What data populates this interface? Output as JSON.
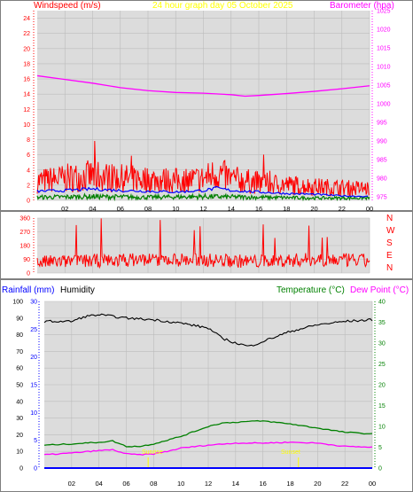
{
  "colors": {
    "wind": "#ff0000",
    "wind_avg": "#0000ff",
    "wind_lull": "#008000",
    "barometer": "#ff00ff",
    "title": "#ffff00",
    "rain": "#0000ff",
    "humidity": "#000000",
    "temperature": "#008000",
    "dewpoint": "#ff00ff",
    "panel_bg": "#dcdcdc",
    "grid": "#bcbcbc"
  },
  "header": {
    "windspeed_label": "Windspeed (m/s)",
    "title": "24 hour graph day   05 October 2025",
    "barometer_label": "Barometer (hpa)"
  },
  "bottom_header": {
    "rainfall_label": "Rainfall (mm)",
    "humidity_label": "Humidity",
    "temperature_label": "Temperature (°C)",
    "dewpoint_label": "Dew Point (°C)"
  },
  "compass": [
    "N",
    "W",
    "S",
    "E",
    "N"
  ],
  "annotations": [
    "Sunrise",
    "Sunset"
  ],
  "chart_data": [
    {
      "type": "line",
      "name": "wind-barometer",
      "x_ticks": [
        "02",
        "04",
        "06",
        "08",
        "10",
        "12",
        "14",
        "16",
        "18",
        "20",
        "22",
        "00"
      ],
      "y_left": {
        "ticks": [
          0,
          2,
          4,
          6,
          8,
          10,
          12,
          14,
          16,
          18,
          20,
          22,
          24
        ],
        "ylim": [
          0,
          25
        ]
      },
      "y_right": {
        "ticks": [
          975,
          980,
          985,
          990,
          995,
          1000,
          1005,
          1010,
          1015,
          1020,
          1025
        ],
        "ylim": [
          974,
          1025
        ]
      },
      "barometer": {
        "x": [
          0,
          2,
          4,
          6,
          8,
          10,
          12,
          14,
          15,
          16,
          18,
          20,
          22,
          24
        ],
        "y": [
          1007.5,
          1006.5,
          1005.5,
          1004.3,
          1003.5,
          1003,
          1002.8,
          1002.4,
          1002,
          1002.2,
          1002.7,
          1003.3,
          1004,
          1004.8
        ]
      },
      "wind_gust_envelope": {
        "x": [
          0,
          2,
          4,
          6,
          8,
          10,
          12,
          13,
          14,
          16,
          18,
          20,
          22,
          24
        ],
        "y": [
          3.5,
          4,
          4.5,
          4,
          3.8,
          3.6,
          3.9,
          5,
          3.9,
          3.2,
          2.8,
          2.5,
          2.3,
          2.1
        ]
      },
      "wind_avg": {
        "x": [
          0,
          2,
          4,
          6,
          8,
          10,
          12,
          13,
          14,
          16,
          18,
          20,
          22,
          24
        ],
        "y": [
          1.2,
          1.3,
          1.5,
          1.3,
          1.2,
          1.1,
          1.3,
          1.6,
          1.3,
          1.1,
          0.9,
          0.8,
          0.6,
          0.5
        ]
      },
      "wind_lull": {
        "x": [
          0,
          4,
          8,
          12,
          16,
          20,
          24
        ],
        "y": [
          0.4,
          0.5,
          0.4,
          0.5,
          0.4,
          0.3,
          0.3
        ]
      }
    },
    {
      "type": "scatter",
      "name": "wind-direction",
      "y_ticks": [
        0,
        90,
        180,
        270,
        360
      ],
      "ylim": [
        0,
        360
      ],
      "x": [
        0,
        4,
        8,
        12,
        16,
        20,
        24
      ],
      "y": [
        70,
        80,
        90,
        85,
        75,
        90,
        80
      ]
    },
    {
      "type": "line",
      "name": "temp-humidity-rain",
      "x_ticks": [
        "02",
        "04",
        "06",
        "08",
        "10",
        "12",
        "14",
        "16",
        "18",
        "20",
        "22",
        "00"
      ],
      "humidity": {
        "ticks": [
          0,
          10,
          20,
          30,
          40,
          50,
          60,
          70,
          80,
          90,
          100
        ],
        "ylim": [
          0,
          100
        ],
        "x": [
          0,
          2,
          3,
          4,
          6,
          8,
          10,
          12,
          13,
          14,
          15,
          16,
          18,
          20,
          22,
          24
        ],
        "y": [
          88,
          88,
          91,
          92,
          90,
          89,
          87,
          84,
          78,
          75,
          73,
          76,
          82,
          86,
          88,
          89
        ]
      },
      "rainfall": {
        "ticks": [
          0,
          5,
          10,
          15,
          20,
          25,
          30
        ],
        "ylim": [
          0,
          30
        ],
        "x": [
          0,
          24
        ],
        "y": [
          0,
          0
        ]
      },
      "temperature": {
        "ticks": [
          0,
          5,
          10,
          15,
          20,
          25,
          30,
          35,
          40
        ],
        "ylim": [
          0,
          40
        ],
        "x": [
          0,
          2,
          4,
          5,
          6,
          7,
          8,
          10,
          12,
          13,
          14,
          15,
          16,
          18,
          20,
          22,
          24
        ],
        "y": [
          5.5,
          5.8,
          6.2,
          6.5,
          5.2,
          5.2,
          5.8,
          7.6,
          10,
          10.8,
          11,
          11.2,
          11.3,
          10.6,
          9.6,
          8.6,
          8.2
        ]
      },
      "dewpoint": {
        "x": [
          0,
          2,
          4,
          5,
          6,
          7,
          8,
          9,
          10,
          12,
          14,
          16,
          18,
          20,
          22,
          24
        ],
        "y": [
          3.2,
          3.6,
          4.2,
          4.4,
          3.4,
          3.2,
          3.4,
          4,
          4.8,
          5.5,
          6,
          6,
          6.2,
          6,
          5.2,
          5
        ]
      },
      "sunrise_x": 7.6,
      "sunset_x": 18.6
    }
  ]
}
